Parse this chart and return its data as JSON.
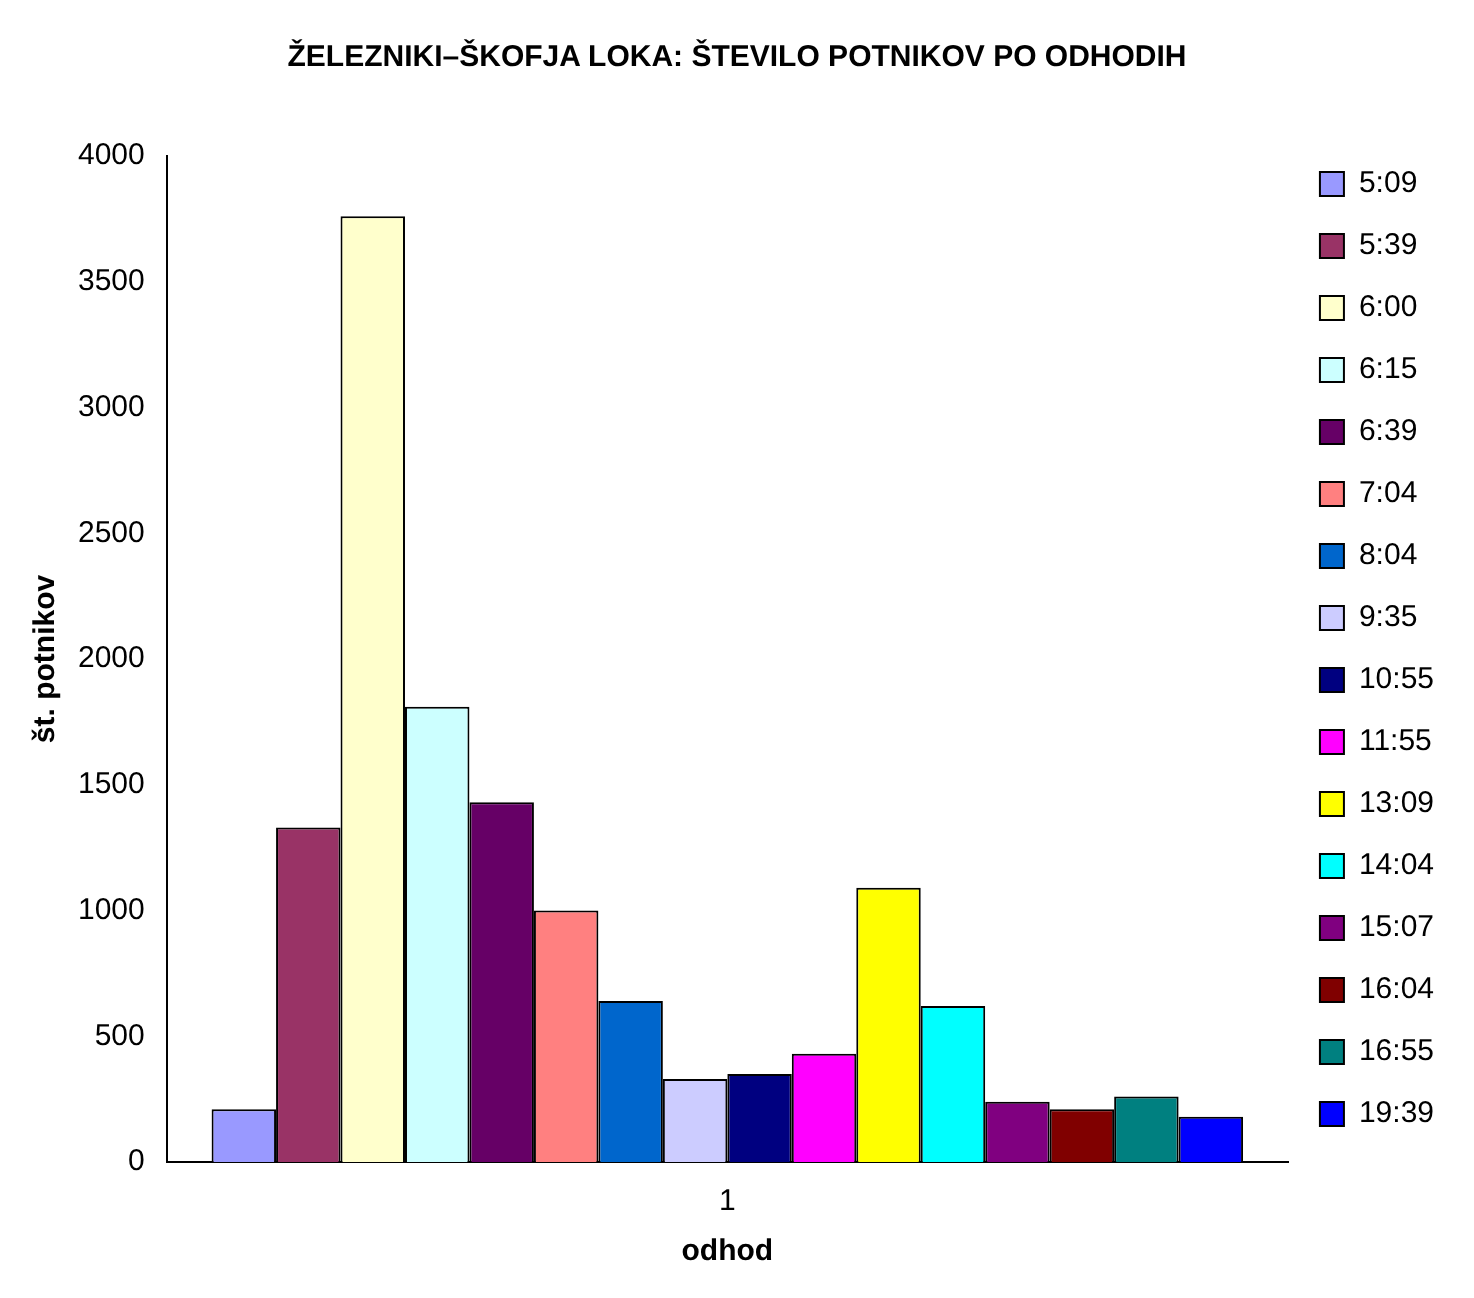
{
  "chart_data": {
    "type": "bar",
    "title": "ŽELEZNIKI–ŠKOFJA LOKA: ŠTEVILO POTNIKOV PO ODHODIH",
    "xlabel": "odhod",
    "ylabel": "št. potnikov",
    "categories": [
      "1"
    ],
    "series": [
      {
        "name": "5:09",
        "color": "#9999ff",
        "values": [
          210
        ]
      },
      {
        "name": "5:39",
        "color": "#993366",
        "values": [
          1330
        ]
      },
      {
        "name": "6:00",
        "color": "#ffffcc",
        "values": [
          3760
        ]
      },
      {
        "name": "6:15",
        "color": "#ccffff",
        "values": [
          1810
        ]
      },
      {
        "name": "6:39",
        "color": "#660066",
        "values": [
          1430
        ]
      },
      {
        "name": "7:04",
        "color": "#ff8080",
        "values": [
          1000
        ]
      },
      {
        "name": "8:04",
        "color": "#0066cc",
        "values": [
          640
        ]
      },
      {
        "name": "9:35",
        "color": "#ccccff",
        "values": [
          330
        ]
      },
      {
        "name": "10:55",
        "color": "#000080",
        "values": [
          350
        ]
      },
      {
        "name": "11:55",
        "color": "#ff00ff",
        "values": [
          430
        ]
      },
      {
        "name": "13:09",
        "color": "#ffff00",
        "values": [
          1090
        ]
      },
      {
        "name": "14:04",
        "color": "#00ffff",
        "values": [
          620
        ]
      },
      {
        "name": "15:07",
        "color": "#800080",
        "values": [
          240
        ]
      },
      {
        "name": "16:04",
        "color": "#800000",
        "values": [
          210
        ]
      },
      {
        "name": "16:55",
        "color": "#008080",
        "values": [
          260
        ]
      },
      {
        "name": "19:39",
        "color": "#0000ff",
        "values": [
          180
        ]
      }
    ],
    "ylim": [
      0,
      4000
    ],
    "yticks": [
      0,
      500,
      1000,
      1500,
      2000,
      2500,
      3000,
      3500,
      4000
    ],
    "grid": false,
    "legend": "right"
  }
}
